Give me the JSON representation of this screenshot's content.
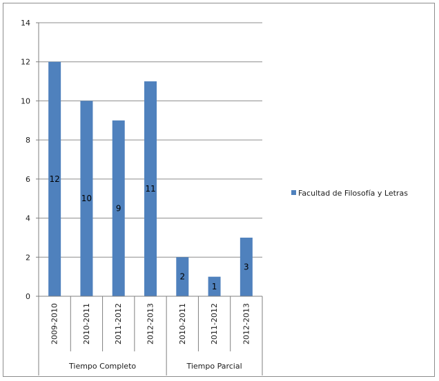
{
  "chart_data": {
    "type": "bar",
    "categories": [
      "2009-2010",
      "2010-2011",
      "2011-2012",
      "2012-2013",
      "2010-2011",
      "2011-2012",
      "2012-2013"
    ],
    "groups": [
      {
        "label": "Tiempo Completo",
        "count": 4
      },
      {
        "label": "Tiempo Parcial",
        "count": 3
      }
    ],
    "series": [
      {
        "name": "Facultad de Filosofía y Letras",
        "values": [
          12,
          10,
          9,
          11,
          2,
          1,
          3
        ]
      }
    ],
    "data_labels": [
      "12",
      "10",
      "9",
      "11",
      "2",
      "1",
      "3"
    ],
    "y_ticks": [
      "0",
      "2",
      "4",
      "6",
      "8",
      "10",
      "12",
      "14"
    ],
    "ylim": [
      0,
      14
    ],
    "grid": true,
    "legend_position": "right",
    "colors": {
      "bar": "#4f81bd",
      "grid": "#8c8c8c",
      "axis": "#7f7f7f"
    }
  }
}
